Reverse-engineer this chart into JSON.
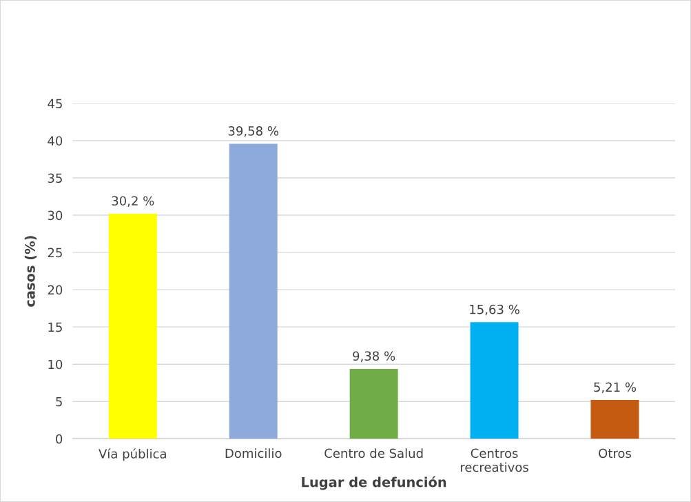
{
  "chart_data": {
    "type": "bar",
    "xlabel": "Lugar de defunción",
    "ylabel": "casos (%)",
    "categories": [
      "Vía pública",
      "Domicilio",
      "Centro de Salud",
      "Centros recreativos",
      "Otros"
    ],
    "values": [
      30.2,
      39.58,
      9.38,
      15.63,
      5.21
    ],
    "colors": [
      "#ffff00",
      "#8eaadc",
      "#70ad47",
      "#00b0f0",
      "#c55a11"
    ],
    "value_labels": [
      "30,2 %",
      "39,58 %",
      "9,38 %",
      "15,63 %",
      "5,21 %"
    ],
    "ylim": [
      0,
      45
    ],
    "yticks": [
      0,
      5,
      10,
      15,
      20,
      25,
      30,
      35,
      40,
      45
    ],
    "grid": "y"
  }
}
